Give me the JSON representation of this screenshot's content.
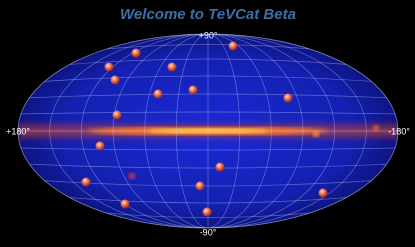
{
  "header": {
    "title": "Welcome to TeVCat Beta"
  },
  "map": {
    "labels": {
      "north": "+90°",
      "south": "-90°",
      "west": "+180°",
      "east": "-180°"
    }
  }
}
